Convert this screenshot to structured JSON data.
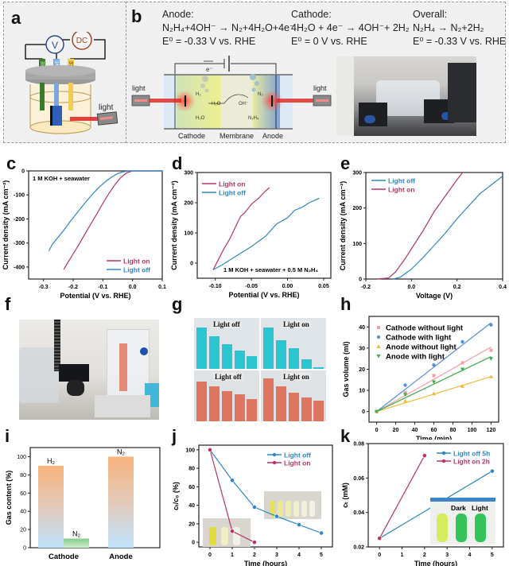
{
  "panels": {
    "a": {
      "label": "a",
      "meters": {
        "voltmeter": "V",
        "power": "DC"
      },
      "electrodes": [
        "RE",
        "WE",
        "CE"
      ],
      "light_label": "light"
    },
    "b": {
      "label": "b",
      "anode": {
        "title": "Anode:",
        "reaction": "N₂H₄+4OH⁻ → N₂+4H₂O+4e⁻",
        "potential": "E⁰ = -0.33 V vs. RHE"
      },
      "cathode": {
        "title": "Cathode:",
        "reaction": "4H₂O + 4e⁻ → 4OH⁻+ 2H₂",
        "potential": "E⁰ = 0 V vs. RHE"
      },
      "overall": {
        "title": "Overall:",
        "reaction": "N₂H₄ → N₂+2H₂",
        "potential": "E⁰ = -0.33 V vs. RHE"
      },
      "diagram": {
        "electron_label": "e⁻",
        "left_light": "light",
        "right_light": "light",
        "species": {
          "h2": "H₂",
          "h2o_top": "H₂O",
          "oh": "OH⁻",
          "h2o_bottom": "H₂O",
          "n2": "N₂",
          "n2h4": "N₂H₄"
        },
        "compartments": [
          "Cathode",
          "Membrane",
          "Anode"
        ]
      }
    },
    "f": {
      "label": "f"
    },
    "g": {
      "label": "g",
      "quadrants": [
        "Light off",
        "Light on",
        "Light off",
        "Light on"
      ]
    },
    "i": {
      "label": "i"
    }
  },
  "chart_data": [
    {
      "id": "c",
      "type": "line",
      "panel_label": "c",
      "annotation": "1 M KOH + seawater",
      "xlabel": "Potential (V vs. RHE)",
      "ylabel": "Current density (mA cm⁻²)",
      "xlim": [
        -0.35,
        0.1
      ],
      "ylim": [
        -450,
        0
      ],
      "xticks": [
        "-0.3",
        "-0.2",
        "-0.1",
        "0.0",
        "0.1"
      ],
      "xtick_values": [
        -0.3,
        -0.2,
        -0.1,
        0.0,
        0.1
      ],
      "yticks": [
        "0",
        "-100",
        "-200",
        "-300",
        "-400"
      ],
      "ytick_values": [
        0,
        -100,
        -200,
        -300,
        -400
      ],
      "legend_position": "bottom-right",
      "series": [
        {
          "name": "Light on",
          "color": "#b8336a",
          "x": [
            -0.232,
            -0.22,
            -0.2,
            -0.18,
            -0.16,
            -0.14,
            -0.12,
            -0.1,
            -0.08,
            -0.06,
            -0.04,
            -0.02,
            0.0,
            0.1
          ],
          "y": [
            -410,
            -385,
            -345,
            -305,
            -262,
            -220,
            -178,
            -135,
            -95,
            -58,
            -28,
            -8,
            0,
            0
          ]
        },
        {
          "name": "Light off",
          "color": "#2f86c4",
          "x": [
            -0.282,
            -0.27,
            -0.25,
            -0.23,
            -0.21,
            -0.19,
            -0.17,
            -0.15,
            -0.13,
            -0.11,
            -0.09,
            -0.07,
            -0.05,
            -0.03,
            -0.01,
            0.1
          ],
          "y": [
            -333,
            -305,
            -275,
            -245,
            -210,
            -180,
            -148,
            -118,
            -90,
            -65,
            -43,
            -25,
            -11,
            -3,
            0,
            0
          ]
        }
      ]
    },
    {
      "id": "d",
      "type": "line",
      "panel_label": "d",
      "annotation": "1 M KOH + seawater + 0.5 M N₂H₄",
      "xlabel": "Potential (V vs. RHE)",
      "ylabel": "Current density (mA cm⁻²)",
      "xlim": [
        -0.125,
        0.06
      ],
      "ylim": [
        -50,
        300
      ],
      "xticks": [
        "-0.10",
        "-0.05",
        "0.00",
        "0.05"
      ],
      "xtick_values": [
        -0.1,
        -0.05,
        0.0,
        0.05
      ],
      "yticks": [
        "0",
        "100",
        "200",
        "300"
      ],
      "ytick_values": [
        0,
        100,
        200,
        300
      ],
      "legend_position": "top-left",
      "series": [
        {
          "name": "Light on",
          "color": "#b8336a",
          "x": [
            -0.103,
            -0.095,
            -0.088,
            -0.08,
            -0.075,
            -0.07,
            -0.065,
            -0.06,
            -0.055,
            -0.05,
            -0.045,
            -0.04,
            -0.035,
            -0.03,
            -0.025
          ],
          "y": [
            -22,
            15,
            48,
            80,
            105,
            130,
            155,
            165,
            180,
            195,
            205,
            215,
            228,
            240,
            250
          ]
        },
        {
          "name": "Light off",
          "color": "#2f86c4",
          "x": [
            -0.103,
            -0.09,
            -0.07,
            -0.05,
            -0.03,
            -0.015,
            0.0,
            0.01,
            0.02,
            0.03,
            0.044
          ],
          "y": [
            -22,
            -5,
            25,
            55,
            90,
            130,
            150,
            175,
            185,
            200,
            215
          ]
        }
      ]
    },
    {
      "id": "e",
      "type": "line",
      "panel_label": "e",
      "xlabel": "Voltage (V)",
      "ylabel": "Current density (mA cm⁻²)",
      "xlim": [
        -0.2,
        0.4
      ],
      "ylim": [
        0,
        300
      ],
      "xticks": [
        "-0.2",
        "0.0",
        "0.2",
        "0.4"
      ],
      "xtick_values": [
        -0.2,
        0.0,
        0.2,
        0.4
      ],
      "yticks": [
        "0",
        "100",
        "200",
        "300"
      ],
      "ytick_values": [
        0,
        100,
        200,
        300
      ],
      "legend_position": "top-left",
      "series": [
        {
          "name": "Light off",
          "color": "#2f86c4",
          "x": [
            -0.08,
            -0.05,
            0.0,
            0.05,
            0.1,
            0.15,
            0.2,
            0.25,
            0.3,
            0.35,
            0.4
          ],
          "y": [
            0,
            5,
            28,
            60,
            95,
            130,
            170,
            205,
            240,
            265,
            290
          ]
        },
        {
          "name": "Light on",
          "color": "#b8336a",
          "x": [
            -0.15,
            -0.1,
            -0.07,
            -0.03,
            0.0,
            0.05,
            0.1,
            0.15,
            0.2,
            0.225
          ],
          "y": [
            0,
            3,
            20,
            55,
            85,
            135,
            190,
            235,
            280,
            300
          ]
        }
      ]
    },
    {
      "id": "h",
      "type": "scatter",
      "panel_label": "h",
      "xlabel": "Time (min)",
      "ylabel": "Gas volume (ml)",
      "xlim": [
        -8,
        128
      ],
      "ylim": [
        -5,
        45
      ],
      "xticks": [
        "0",
        "20",
        "40",
        "60",
        "80",
        "100",
        "120"
      ],
      "xtick_values": [
        0,
        20,
        40,
        60,
        80,
        100,
        120
      ],
      "yticks": [
        "0",
        "10",
        "20",
        "30",
        "40"
      ],
      "ytick_values": [
        0,
        10,
        20,
        30,
        40
      ],
      "legend_position": "top-left",
      "x": [
        0,
        30,
        60,
        90,
        120
      ],
      "series": [
        {
          "name": "Cathode without light",
          "color": "#f2a0a8",
          "marker": "square",
          "values": [
            0,
            9,
            17,
            23,
            29
          ],
          "fit_end": 30.5
        },
        {
          "name": "Cathode with light",
          "color": "#5a8fd6",
          "marker": "circle",
          "values": [
            0,
            12.5,
            22,
            33,
            41
          ],
          "fit_end": 42
        },
        {
          "name": "Anode without light",
          "color": "#f0b93a",
          "marker": "triangle-up",
          "values": [
            0,
            5,
            8.5,
            12,
            16.5
          ],
          "fit_end": 16.5
        },
        {
          "name": "Anode with light",
          "color": "#3cae4a",
          "marker": "triangle-down",
          "values": [
            0,
            8,
            14,
            20,
            25
          ],
          "fit_end": 26
        }
      ]
    },
    {
      "id": "i",
      "type": "bar",
      "panel_label": "i",
      "xlabel": "",
      "ylabel": "Gas content (%)",
      "ylim": [
        0,
        110
      ],
      "yticks": [
        "0",
        "20",
        "40",
        "60",
        "80",
        "100"
      ],
      "ytick_values": [
        0,
        20,
        40,
        60,
        80,
        100
      ],
      "categories": [
        "Cathode",
        "Anode"
      ],
      "bars": [
        {
          "category": "Cathode",
          "gas": "H₂",
          "value": 90
        },
        {
          "category": "Cathode",
          "gas": "N₂",
          "value": 10
        },
        {
          "category": "Anode",
          "gas": "N₂",
          "value": 100
        }
      ]
    },
    {
      "id": "j",
      "type": "line",
      "panel_label": "j",
      "xlabel": "Time (hours)",
      "ylabel": "cₜ/c₀ (%)",
      "xlim": [
        -0.5,
        5.5
      ],
      "ylim": [
        -5,
        105
      ],
      "xticks": [
        "0",
        "1",
        "2",
        "3",
        "4",
        "5"
      ],
      "xtick_values": [
        0,
        1,
        2,
        3,
        4,
        5
      ],
      "yticks": [
        "0",
        "20",
        "40",
        "60",
        "80",
        "100"
      ],
      "ytick_values": [
        0,
        20,
        40,
        60,
        80,
        100
      ],
      "legend_position": "top-right",
      "series": [
        {
          "name": "Light off",
          "color": "#2f86c4",
          "x": [
            0,
            1,
            2,
            3,
            4,
            5
          ],
          "y": [
            100,
            67,
            38,
            28,
            19,
            10
          ]
        },
        {
          "name": "Light on",
          "color": "#b8336a",
          "x": [
            0,
            1,
            2
          ],
          "y": [
            100,
            12,
            0
          ]
        }
      ]
    },
    {
      "id": "k",
      "type": "line",
      "panel_label": "k",
      "xlabel": "Time (hours)",
      "ylabel": "cₜ (mM)",
      "xlim": [
        -0.5,
        5.5
      ],
      "ylim": [
        0.02,
        0.08
      ],
      "xticks": [
        "0",
        "1",
        "2",
        "3",
        "4",
        "5"
      ],
      "xtick_values": [
        0,
        1,
        2,
        3,
        4,
        5
      ],
      "yticks": [
        "0.02",
        "0.04",
        "0.06",
        "0.08"
      ],
      "ytick_values": [
        0.02,
        0.04,
        0.06,
        0.08
      ],
      "legend_position": "top-right",
      "inset_labels": [
        "Dark",
        "Light"
      ],
      "series": [
        {
          "name": "Light off 5h",
          "color": "#2f86c4",
          "x": [
            0,
            5
          ],
          "y": [
            0.025,
            0.064
          ]
        },
        {
          "name": "Light on 2h",
          "color": "#b8336a",
          "x": [
            0,
            2
          ],
          "y": [
            0.025,
            0.073
          ]
        }
      ]
    }
  ]
}
